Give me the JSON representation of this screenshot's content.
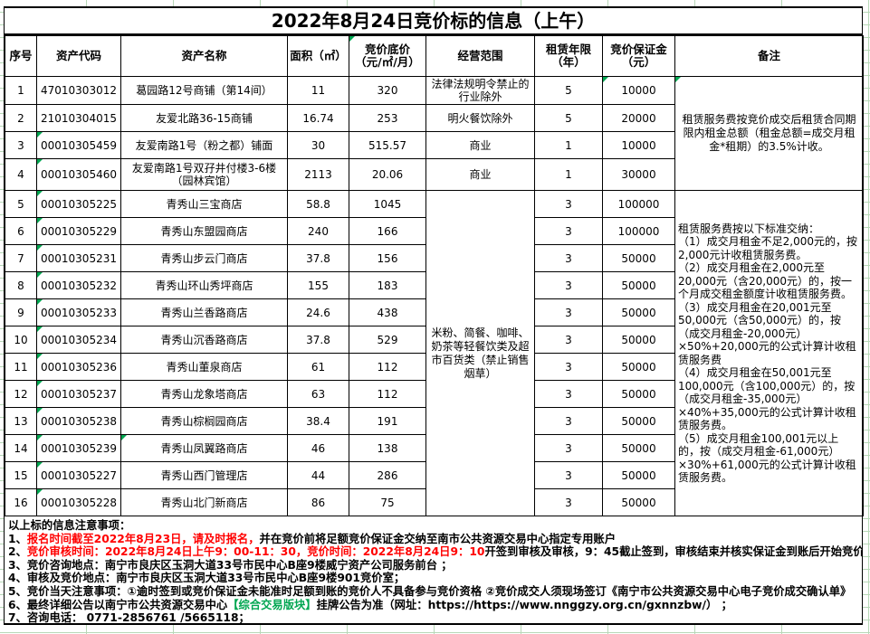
{
  "title": "2022年8月24日竞价标的信息（上午）",
  "table": {
    "headers": [
      "序号",
      "资产代码",
      "资产名称",
      "面积（㎡）",
      "竞价底价\n（元/㎡/月）",
      "经营范围",
      "租赁年限\n（年）",
      "竞价保证金\n（元）",
      "备注"
    ],
    "rows": [
      {
        "no": "1",
        "code": "47010303012",
        "name": "葛园路12号商铺（第14间）",
        "area": "11",
        "price": "320",
        "scope": "法律法规明令禁止的行业除外",
        "years": "5",
        "deposit": "10000"
      },
      {
        "no": "2",
        "code": "21010304015",
        "name": "友爱北路36-15商铺",
        "area": "16.74",
        "price": "253",
        "scope": "明火餐饮除外",
        "years": "5",
        "deposit": "20000"
      },
      {
        "no": "3",
        "code": "00010305459",
        "name": "友爱南路1号（粉之都）铺面",
        "area": "30",
        "price": "515.57",
        "scope": "商业",
        "years": "1",
        "deposit": "10000"
      },
      {
        "no": "4",
        "code": "00010305460",
        "name": "友爱南路1号双孖井付楼3-6楼（园林宾馆）",
        "area": "2113",
        "price": "20.06",
        "scope": "商业",
        "years": "1",
        "deposit": "30000"
      },
      {
        "no": "5",
        "code": "00010305225",
        "name": "青秀山三宝商店",
        "area": "58.8",
        "price": "1045",
        "years": "3",
        "deposit": "100000"
      },
      {
        "no": "6",
        "code": "00010305229",
        "name": "青秀山东盟园商店",
        "area": "240",
        "price": "166",
        "years": "3",
        "deposit": "100000"
      },
      {
        "no": "7",
        "code": "00010305231",
        "name": "青秀山步云门商店",
        "area": "37.8",
        "price": "156",
        "years": "3",
        "deposit": "50000"
      },
      {
        "no": "8",
        "code": "00010305232",
        "name": "青秀山环山秀坪商店",
        "area": "155",
        "price": "183",
        "years": "3",
        "deposit": "50000"
      },
      {
        "no": "9",
        "code": "00010305233",
        "name": "青秀山兰香路商店",
        "area": "24.6",
        "price": "438",
        "years": "3",
        "deposit": "50000"
      },
      {
        "no": "10",
        "code": "00010305234",
        "name": "青秀山沉香路商店",
        "area": "37.8",
        "price": "529",
        "years": "3",
        "deposit": "50000"
      },
      {
        "no": "11",
        "code": "00010305236",
        "name": "青秀山董泉商店",
        "area": "61",
        "price": "112",
        "years": "3",
        "deposit": "50000"
      },
      {
        "no": "12",
        "code": "00010305237",
        "name": "青秀山龙象塔商店",
        "area": "63",
        "price": "112",
        "years": "3",
        "deposit": "50000"
      },
      {
        "no": "13",
        "code": "00010305238",
        "name": "青秀山棕榈园商店",
        "area": "38.4",
        "price": "191",
        "years": "3",
        "deposit": "50000"
      },
      {
        "no": "14",
        "code": "00010305239",
        "name": "青秀山凤翼路商店",
        "area": "46",
        "price": "138",
        "years": "3",
        "deposit": "50000"
      },
      {
        "no": "15",
        "code": "00010305227",
        "name": "青秀山西门管理店",
        "area": "44",
        "price": "286",
        "years": "3",
        "deposit": "50000"
      },
      {
        "no": "16",
        "code": "00010305228",
        "name": "青秀山北门新商店",
        "area": "86",
        "price": "75",
        "years": "3",
        "deposit": "50000"
      }
    ],
    "merged_scope": "米粉、简餐、咖啡、奶茶等轻餐饮类及超市百货类（禁止销售烟草）",
    "remark_top": "租赁服务费按竞价成交后租赁合同期限内租金总额（租金总额=成交月租金*租期）的3.5%计收。",
    "remark_bottom_lines": [
      "租赁服务费按以下标准交纳：",
      "（1）成交月租金不足2,000元的，按2,000元计收租赁服务费。",
      "（2）成交月租金在2,000元至20,000元（含20,000元）的，按一个月成交租金额度计收租赁服务费。",
      "（3）成交月租金在20,001元至50,000元（含50,000元）的，按（成交月租金-20,000元）×50%+20,000元的公式计算计收租赁服务费",
      "（4）成交月租金在50,001元至100,000元（含100,000元）的，按（成交月租金-35,000元）×40%+35,000元的公式计算计收租赁服务费。",
      "（5）成交月租金100,001元以上的，按（成交月租金-61,000元）×30%+61,000元的公式计算计收租赁服务费。"
    ]
  },
  "notes": {
    "lines": [
      [
        {
          "text": "以上标的信息注意事项："
        }
      ],
      [
        {
          "text": "1、"
        },
        {
          "text": "报名时间截至2022年8月23日，请及时报名，",
          "color": "red"
        },
        {
          "text": "并在竞价前将足额竞价保证金交纳至南市公共资源交易中心指定专用账户"
        }
      ],
      [
        {
          "text": "2、"
        },
        {
          "text": "竞价审核时间：2022年8月24日上午9：00-11：30，竞价时间：2022年8月24日9：10",
          "color": "red"
        },
        {
          "text": "开签到审核及审核，9：45截止签到，审核结束并核实保证金到账后开始竞价 ；"
        }
      ],
      [
        {
          "text": "3、竞价咨询地点：南宁市良庆区玉洞大道33号市民中心B座9楼威宁资产公司服务前台 ；"
        }
      ],
      [
        {
          "text": "4、审核及竞价地点：南宁市良庆区玉洞大道33号市民中心B座9楼901竞价室；"
        }
      ],
      [
        {
          "text": "5、竞价当天注意事项：①逾时签到或竞价保证金未能准时足额到账的竞价人不具备参与竞价资格 ②竞价成交人须现场签订《南宁市公共资源交易中心电子竞价成交确认单》"
        }
      ],
      [
        {
          "text": "6、最终详细公告以南宁市公共资源交易中心"
        },
        {
          "text": "【综合交易版块】",
          "color": "green"
        },
        {
          "text": "挂牌公告为准（网址：https://https://www.nnggzy.org.cn/gxnnzbw/） ；"
        }
      ],
      [
        {
          "text": "7、咨询电话： 0771-2856761 /5665118；"
        }
      ]
    ]
  },
  "colors": {
    "highlight_red": "#ff0000",
    "highlight_green": "#00a651",
    "triangle_green": "#00a651",
    "gridline": "#b7d7b7",
    "border": "#000000"
  }
}
